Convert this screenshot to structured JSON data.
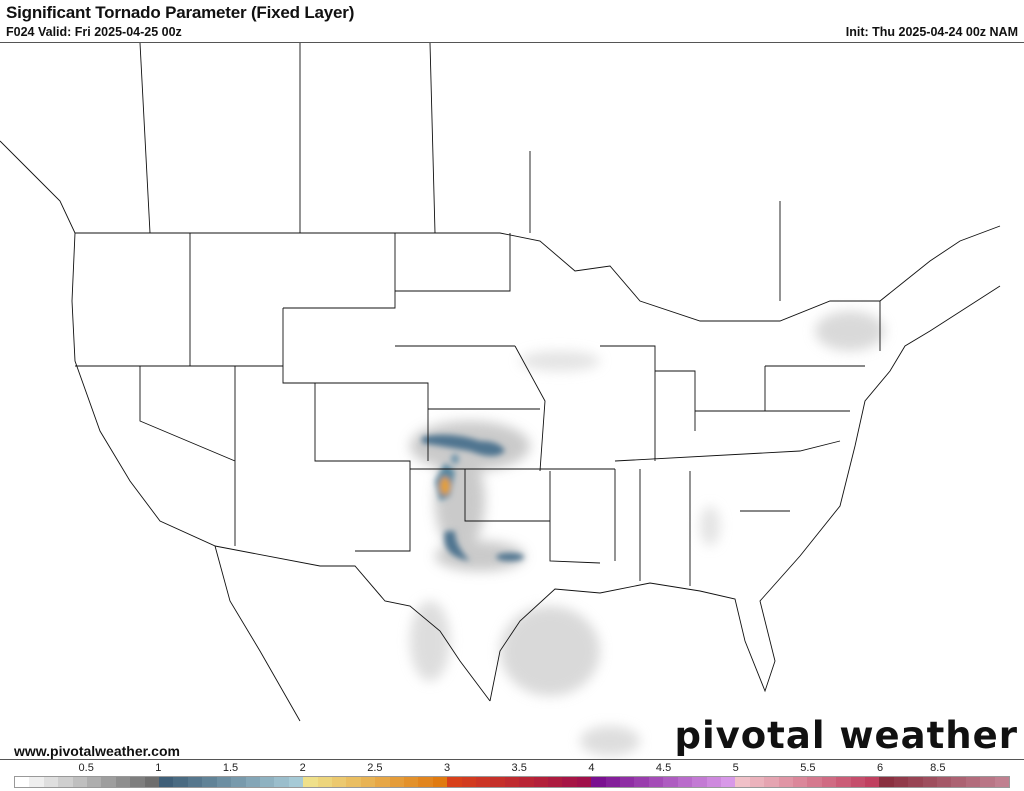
{
  "header": {
    "title": "Significant Tornado Parameter (Fixed Layer)",
    "valid": "F024 Valid: Fri 2025-04-25 00z",
    "init": "Init: Thu 2025-04-24 00z NAM"
  },
  "footer": {
    "website": "www.pivotalweather.com",
    "logo": "pivotal weather"
  },
  "colorbar": {
    "labels": [
      "0.5",
      "1",
      "1.5",
      "2",
      "2.5",
      "3",
      "3.5",
      "4",
      "4.5",
      "5",
      "5.5",
      "6",
      "8.5"
    ],
    "stops": [
      {
        "v": 0.0,
        "c": "#ffffff"
      },
      {
        "v": 0.9,
        "c": "#6e6e6e"
      },
      {
        "v": 1.0,
        "c": "#3f5f78"
      },
      {
        "v": 1.9,
        "c": "#a6cad6"
      },
      {
        "v": 2.0,
        "c": "#efe08a"
      },
      {
        "v": 2.9,
        "c": "#e07a10"
      },
      {
        "v": 3.0,
        "c": "#d8401a"
      },
      {
        "v": 3.9,
        "c": "#a0104a"
      },
      {
        "v": 4.0,
        "c": "#7a1090"
      },
      {
        "v": 4.9,
        "c": "#d898e8"
      },
      {
        "v": 5.0,
        "c": "#f0c0c8"
      },
      {
        "v": 5.9,
        "c": "#c04060"
      },
      {
        "v": 6.0,
        "c": "#8a3040"
      },
      {
        "v": 6.8,
        "c": "#c08090"
      }
    ]
  }
}
